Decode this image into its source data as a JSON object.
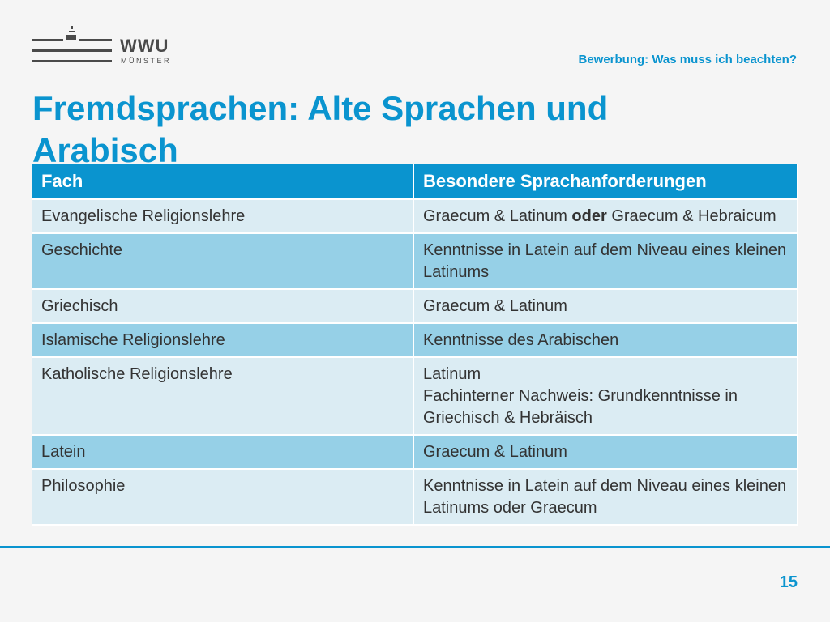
{
  "logo": {
    "name": "WWU",
    "sub": "MÜNSTER"
  },
  "header_subtitle": "Bewerbung: Was muss ich beachten?",
  "title": "Fremdsprachen: Alte Sprachen und Arabisch",
  "table": {
    "headers": [
      "Fach",
      "Besondere Sprachanforderungen"
    ],
    "rows": [
      {
        "fach": "Evangelische Religionslehre",
        "req_before": "Graecum & Latinum ",
        "req_bold": "oder",
        "req_after": " Graecum & Hebraicum"
      },
      {
        "fach": "Geschichte",
        "req": "Kenntnisse in Latein auf dem Niveau eines kleinen Latinums"
      },
      {
        "fach": "Griechisch",
        "req": "Graecum & Latinum"
      },
      {
        "fach": "Islamische Religionslehre",
        "req": "Kenntnisse des Arabischen"
      },
      {
        "fach": "Katholische Religionslehre",
        "req_line1": "Latinum",
        "req_line2": "Fachinterner Nachweis: Grundkenntnisse in Griechisch & Hebräisch"
      },
      {
        "fach": "Latein",
        "req": "Graecum & Latinum"
      },
      {
        "fach": "Philosophie",
        "req": "Kenntnisse in Latein auf dem Niveau eines kleinen Latinums oder Graecum"
      }
    ]
  },
  "page_number": "15",
  "colors": {
    "accent": "#0a94cf",
    "row_light": "#dbecf3",
    "row_dark": "#96d0e7"
  }
}
